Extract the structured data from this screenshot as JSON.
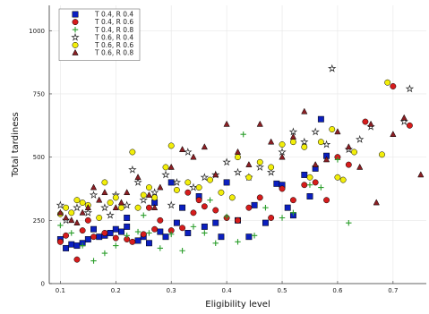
{
  "chart_data": {
    "type": "scatter",
    "title": "",
    "xlabel": "Eligibility level",
    "ylabel": "Total tardiness",
    "xlim": [
      0.08,
      0.76
    ],
    "ylim": [
      0,
      1100
    ],
    "x_ticks": [
      0.1,
      0.2,
      0.3,
      0.4,
      0.5,
      0.6,
      0.7
    ],
    "x_tick_labels": [
      "0.1",
      "0.2",
      "0.3",
      "0.4",
      "0.5",
      "0.6",
      "0.7"
    ],
    "y_ticks": [
      0,
      250,
      500,
      750,
      1000
    ],
    "y_tick_labels": [
      "0",
      "250",
      "500",
      "750",
      "1000"
    ],
    "grid": true,
    "legend_position": "top-left",
    "series": [
      {
        "name": "T 0.4, R 0.4",
        "marker": "square",
        "color": "#0b1fbf",
        "points": [
          [
            0.1,
            175
          ],
          [
            0.11,
            140
          ],
          [
            0.12,
            155
          ],
          [
            0.13,
            150
          ],
          [
            0.14,
            160
          ],
          [
            0.15,
            175
          ],
          [
            0.17,
            185
          ],
          [
            0.18,
            190
          ],
          [
            0.19,
            200
          ],
          [
            0.2,
            215
          ],
          [
            0.21,
            205
          ],
          [
            0.22,
            225
          ],
          [
            0.24,
            170
          ],
          [
            0.25,
            185
          ],
          [
            0.26,
            160
          ],
          [
            0.28,
            205
          ],
          [
            0.29,
            185
          ],
          [
            0.3,
            400
          ],
          [
            0.31,
            240
          ],
          [
            0.33,
            200
          ],
          [
            0.35,
            345
          ],
          [
            0.36,
            225
          ],
          [
            0.38,
            240
          ],
          [
            0.39,
            185
          ],
          [
            0.4,
            400
          ],
          [
            0.42,
            250
          ],
          [
            0.44,
            185
          ],
          [
            0.45,
            310
          ],
          [
            0.47,
            240
          ],
          [
            0.49,
            395
          ],
          [
            0.5,
            390
          ],
          [
            0.51,
            300
          ],
          [
            0.52,
            270
          ],
          [
            0.54,
            430
          ],
          [
            0.55,
            345
          ],
          [
            0.56,
            455
          ],
          [
            0.57,
            650
          ],
          [
            0.58,
            505
          ],
          [
            0.27,
            320
          ],
          [
            0.32,
            300
          ],
          [
            0.22,
            260
          ],
          [
            0.16,
            215
          ]
        ]
      },
      {
        "name": "T 0.4, R 0.6",
        "marker": "circle",
        "color": "#d61c1c",
        "points": [
          [
            0.1,
            165
          ],
          [
            0.11,
            190
          ],
          [
            0.13,
            95
          ],
          [
            0.14,
            210
          ],
          [
            0.16,
            185
          ],
          [
            0.18,
            200
          ],
          [
            0.2,
            180
          ],
          [
            0.22,
            175
          ],
          [
            0.23,
            165
          ],
          [
            0.25,
            195
          ],
          [
            0.27,
            215
          ],
          [
            0.28,
            250
          ],
          [
            0.3,
            210
          ],
          [
            0.32,
            220
          ],
          [
            0.34,
            280
          ],
          [
            0.35,
            330
          ],
          [
            0.36,
            305
          ],
          [
            0.38,
            290
          ],
          [
            0.4,
            260
          ],
          [
            0.42,
            250
          ],
          [
            0.44,
            300
          ],
          [
            0.46,
            340
          ],
          [
            0.48,
            260
          ],
          [
            0.5,
            375
          ],
          [
            0.52,
            330
          ],
          [
            0.54,
            390
          ],
          [
            0.56,
            400
          ],
          [
            0.58,
            330
          ],
          [
            0.6,
            500
          ],
          [
            0.62,
            470
          ],
          [
            0.65,
            640
          ],
          [
            0.7,
            780
          ],
          [
            0.73,
            625
          ],
          [
            0.15,
            250
          ],
          [
            0.26,
            300
          ],
          [
            0.33,
            360
          ]
        ]
      },
      {
        "name": "T 0.4, R 0.8",
        "marker": "plus",
        "color": "#2b9e2b",
        "points": [
          [
            0.1,
            230
          ],
          [
            0.12,
            200
          ],
          [
            0.14,
            150
          ],
          [
            0.16,
            90
          ],
          [
            0.18,
            120
          ],
          [
            0.2,
            150
          ],
          [
            0.22,
            190
          ],
          [
            0.24,
            205
          ],
          [
            0.26,
            200
          ],
          [
            0.28,
            140
          ],
          [
            0.3,
            195
          ],
          [
            0.32,
            130
          ],
          [
            0.34,
            225
          ],
          [
            0.36,
            200
          ],
          [
            0.38,
            160
          ],
          [
            0.4,
            265
          ],
          [
            0.42,
            165
          ],
          [
            0.43,
            590
          ],
          [
            0.45,
            190
          ],
          [
            0.47,
            300
          ],
          [
            0.5,
            260
          ],
          [
            0.52,
            280
          ],
          [
            0.55,
            390
          ],
          [
            0.57,
            380
          ],
          [
            0.6,
            490
          ],
          [
            0.62,
            240
          ],
          [
            0.25,
            270
          ],
          [
            0.37,
            330
          ]
        ]
      },
      {
        "name": "T 0.6, R 0.4",
        "marker": "star",
        "color": "#222222",
        "points": [
          [
            0.1,
            310
          ],
          [
            0.11,
            250
          ],
          [
            0.13,
            300
          ],
          [
            0.15,
            280
          ],
          [
            0.16,
            350
          ],
          [
            0.18,
            300
          ],
          [
            0.2,
            350
          ],
          [
            0.22,
            310
          ],
          [
            0.23,
            450
          ],
          [
            0.24,
            400
          ],
          [
            0.25,
            330
          ],
          [
            0.27,
            360
          ],
          [
            0.29,
            430
          ],
          [
            0.31,
            400
          ],
          [
            0.33,
            520
          ],
          [
            0.34,
            380
          ],
          [
            0.36,
            420
          ],
          [
            0.38,
            430
          ],
          [
            0.4,
            480
          ],
          [
            0.42,
            440
          ],
          [
            0.44,
            420
          ],
          [
            0.46,
            460
          ],
          [
            0.48,
            440
          ],
          [
            0.5,
            520
          ],
          [
            0.52,
            600
          ],
          [
            0.54,
            560
          ],
          [
            0.56,
            600
          ],
          [
            0.58,
            550
          ],
          [
            0.59,
            850
          ],
          [
            0.62,
            530
          ],
          [
            0.64,
            570
          ],
          [
            0.66,
            620
          ],
          [
            0.72,
            640
          ],
          [
            0.73,
            770
          ],
          [
            0.19,
            270
          ],
          [
            0.3,
            310
          ]
        ]
      },
      {
        "name": "T 0.6, R 0.6",
        "marker": "circle",
        "color": "#f2ee0a",
        "points": [
          [
            0.1,
            275
          ],
          [
            0.11,
            300
          ],
          [
            0.12,
            280
          ],
          [
            0.13,
            330
          ],
          [
            0.14,
            320
          ],
          [
            0.15,
            310
          ],
          [
            0.17,
            260
          ],
          [
            0.19,
            320
          ],
          [
            0.2,
            340
          ],
          [
            0.21,
            300
          ],
          [
            0.23,
            520
          ],
          [
            0.24,
            300
          ],
          [
            0.25,
            350
          ],
          [
            0.27,
            340
          ],
          [
            0.29,
            460
          ],
          [
            0.3,
            545
          ],
          [
            0.31,
            370
          ],
          [
            0.33,
            400
          ],
          [
            0.35,
            380
          ],
          [
            0.37,
            410
          ],
          [
            0.39,
            360
          ],
          [
            0.41,
            340
          ],
          [
            0.42,
            500
          ],
          [
            0.44,
            420
          ],
          [
            0.46,
            480
          ],
          [
            0.48,
            460
          ],
          [
            0.5,
            550
          ],
          [
            0.52,
            560
          ],
          [
            0.54,
            540
          ],
          [
            0.55,
            420
          ],
          [
            0.57,
            560
          ],
          [
            0.59,
            610
          ],
          [
            0.6,
            420
          ],
          [
            0.61,
            410
          ],
          [
            0.63,
            520
          ],
          [
            0.68,
            510
          ],
          [
            0.69,
            795
          ],
          [
            0.18,
            400
          ],
          [
            0.26,
            380
          ]
        ]
      },
      {
        "name": "T 0.6, R 0.8",
        "marker": "triangle",
        "color": "#8b1f24",
        "points": [
          [
            0.1,
            280
          ],
          [
            0.11,
            260
          ],
          [
            0.12,
            250
          ],
          [
            0.13,
            240
          ],
          [
            0.15,
            300
          ],
          [
            0.16,
            380
          ],
          [
            0.17,
            330
          ],
          [
            0.18,
            360
          ],
          [
            0.2,
            300
          ],
          [
            0.21,
            320
          ],
          [
            0.22,
            360
          ],
          [
            0.24,
            420
          ],
          [
            0.26,
            350
          ],
          [
            0.28,
            380
          ],
          [
            0.3,
            460
          ],
          [
            0.32,
            530
          ],
          [
            0.34,
            500
          ],
          [
            0.36,
            540
          ],
          [
            0.38,
            430
          ],
          [
            0.4,
            630
          ],
          [
            0.42,
            520
          ],
          [
            0.44,
            470
          ],
          [
            0.46,
            630
          ],
          [
            0.48,
            560
          ],
          [
            0.5,
            500
          ],
          [
            0.52,
            580
          ],
          [
            0.54,
            680
          ],
          [
            0.56,
            470
          ],
          [
            0.58,
            490
          ],
          [
            0.6,
            600
          ],
          [
            0.62,
            540
          ],
          [
            0.64,
            460
          ],
          [
            0.66,
            630
          ],
          [
            0.67,
            320
          ],
          [
            0.7,
            590
          ],
          [
            0.72,
            655
          ],
          [
            0.75,
            430
          ],
          [
            0.14,
            280
          ],
          [
            0.27,
            300
          ]
        ]
      }
    ]
  }
}
